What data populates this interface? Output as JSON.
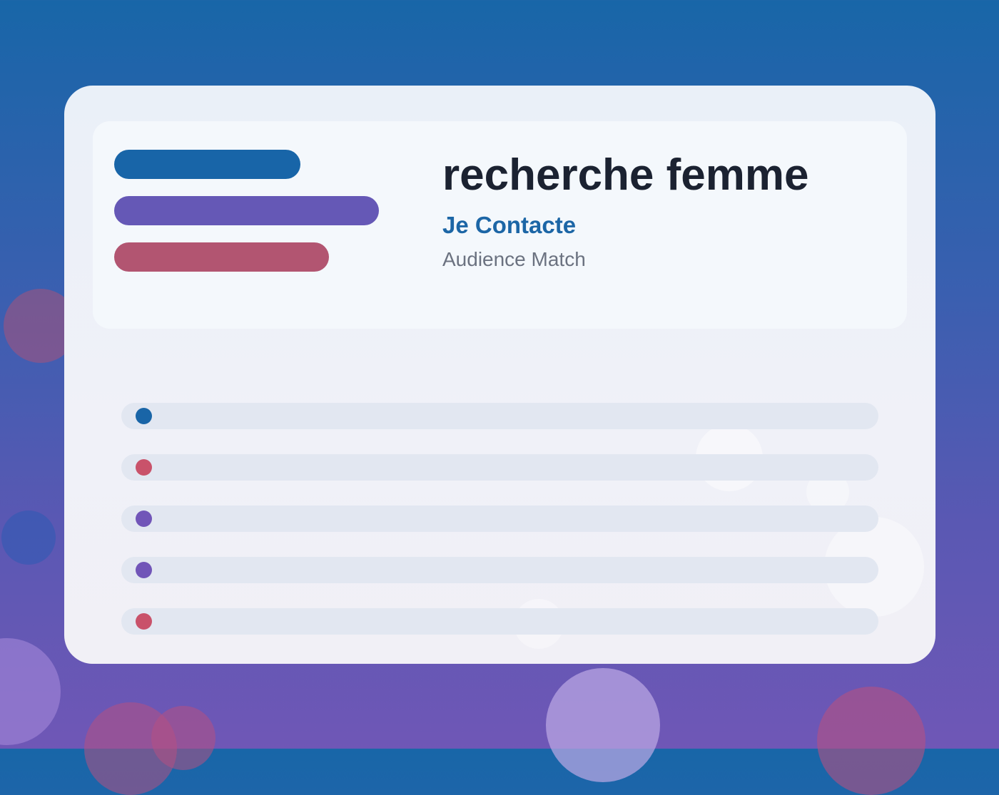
{
  "colors": {
    "blue": "#1865a8",
    "purple": "#6558b6",
    "red": "#b25571",
    "dot_blue": "#1965a7",
    "dot_red": "#c9526a",
    "dot_purple": "#7155b8"
  },
  "header": {
    "title": "recherche femme",
    "subtitle": "Je Contacte",
    "tagline": "Audience Match"
  },
  "list": {
    "items": [
      {
        "dot": "blue"
      },
      {
        "dot": "red"
      },
      {
        "dot": "purple"
      },
      {
        "dot": "purple"
      },
      {
        "dot": "red"
      }
    ]
  }
}
